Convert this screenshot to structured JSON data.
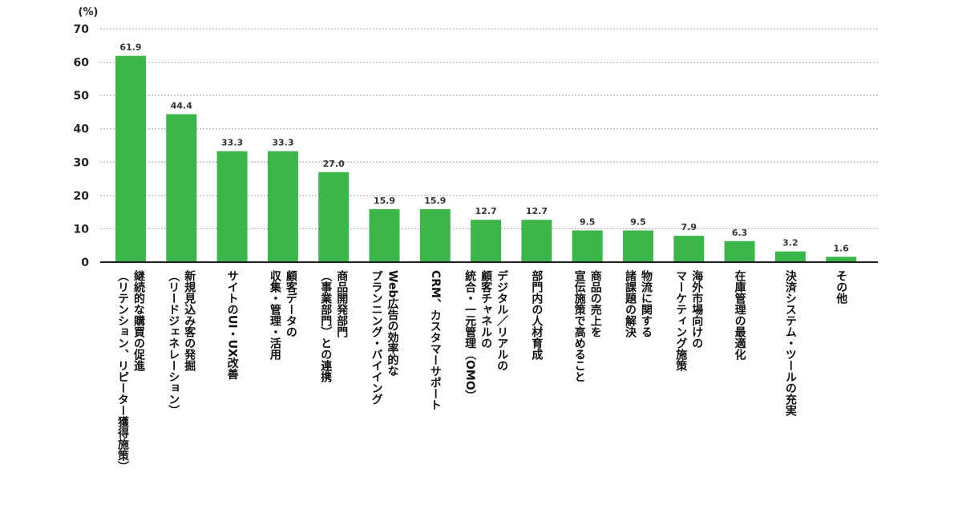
{
  "chart_data": {
    "type": "bar",
    "unit_label": "(%)",
    "ylim": [
      0,
      70
    ],
    "yticks": [
      0,
      10,
      20,
      30,
      40,
      50,
      60,
      70
    ],
    "grid": true,
    "bar_color": "#3cb54a",
    "categories": [
      [
        "継続的な購買の促進",
        "（リテンション、リピーター獲得施策）"
      ],
      [
        "新規見込み客の発掘",
        "（リードジェネレーション）"
      ],
      [
        "サイトのUI・UX改善"
      ],
      [
        "顧客データの",
        "収集・管理・活用"
      ],
      [
        "商品開発部門",
        "（事業部門）との連携"
      ],
      [
        "Web広告の効率的な",
        "プランニング・バイイング"
      ],
      [
        "CRM、カスタマーサポート"
      ],
      [
        "デジタル／リアルの",
        "顧客チャネルの",
        "統合・一元管理（OMO）"
      ],
      [
        "部門内の人材育成"
      ],
      [
        "商品の売上を",
        "宣伝施策で高めること"
      ],
      [
        "物流に関する",
        "諸課題の解決"
      ],
      [
        "海外市場向けの",
        "マーケティング施策"
      ],
      [
        "在庫管理の最適化"
      ],
      [
        "決済システム・ツールの充実"
      ],
      [
        "その他"
      ]
    ],
    "values": [
      61.9,
      44.4,
      33.3,
      33.3,
      27.0,
      15.9,
      15.9,
      12.7,
      12.7,
      9.5,
      9.5,
      7.9,
      6.3,
      3.2,
      1.6
    ],
    "value_labels": [
      "61.9",
      "44.4",
      "33.3",
      "33.3",
      "27.0",
      "15.9",
      "15.9",
      "12.7",
      "12.7",
      "9.5",
      "9.5",
      "7.9",
      "6.3",
      "3.2",
      "1.6"
    ]
  }
}
